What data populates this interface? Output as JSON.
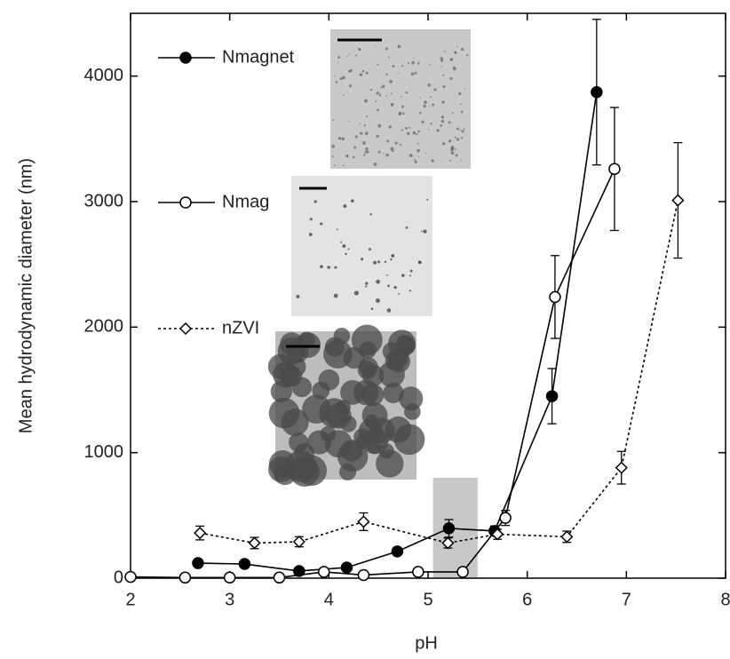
{
  "chart_data": {
    "type": "line",
    "xlabel": "pH",
    "ylabel": "Mean hydrodynamic diameter (nm)",
    "xlim": [
      2,
      8
    ],
    "xticks": [
      2,
      3,
      4,
      5,
      6,
      7,
      8
    ],
    "ylim": [
      0,
      4500
    ],
    "yticks": [
      0,
      1000,
      2000,
      3000,
      4000
    ],
    "grid": false,
    "shaded_region": {
      "x": [
        5.05,
        5.5
      ],
      "y": [
        0,
        800
      ],
      "color": "#c8c8c8"
    },
    "series": [
      {
        "name": "Nmagnet",
        "color": "#000000",
        "marker": "filled-circle",
        "linestyle": "solid",
        "x": [
          2.68,
          3.15,
          3.7,
          4.18,
          4.69,
          5.21,
          5.67,
          6.25,
          6.7
        ],
        "values": [
          120,
          113,
          57,
          85,
          213,
          397,
          376,
          1450,
          3872
        ],
        "errors": [
          null,
          null,
          null,
          null,
          null,
          70,
          40,
          220,
          580
        ]
      },
      {
        "name": "Nmag",
        "color": "#000000",
        "marker": "open-circle",
        "linestyle": "solid",
        "x": [
          2.0,
          2.55,
          3.0,
          3.5,
          3.95,
          4.35,
          4.9,
          5.35,
          5.78,
          6.28,
          6.88
        ],
        "values": [
          10,
          5,
          5,
          5,
          50,
          25,
          50,
          50,
          480,
          2240,
          3260
        ],
        "errors": [
          null,
          null,
          null,
          null,
          null,
          null,
          null,
          null,
          60,
          330,
          490
        ]
      },
      {
        "name": "nZVI",
        "color": "#000000",
        "marker": "diamond",
        "linestyle": "dotted",
        "x": [
          2.7,
          3.25,
          3.7,
          4.35,
          5.2,
          5.7,
          6.4,
          6.95,
          7.52
        ],
        "values": [
          360,
          280,
          290,
          450,
          280,
          350,
          330,
          880,
          3010
        ],
        "errors": [
          55,
          45,
          40,
          70,
          40,
          40,
          45,
          130,
          460
        ]
      }
    ]
  }
}
